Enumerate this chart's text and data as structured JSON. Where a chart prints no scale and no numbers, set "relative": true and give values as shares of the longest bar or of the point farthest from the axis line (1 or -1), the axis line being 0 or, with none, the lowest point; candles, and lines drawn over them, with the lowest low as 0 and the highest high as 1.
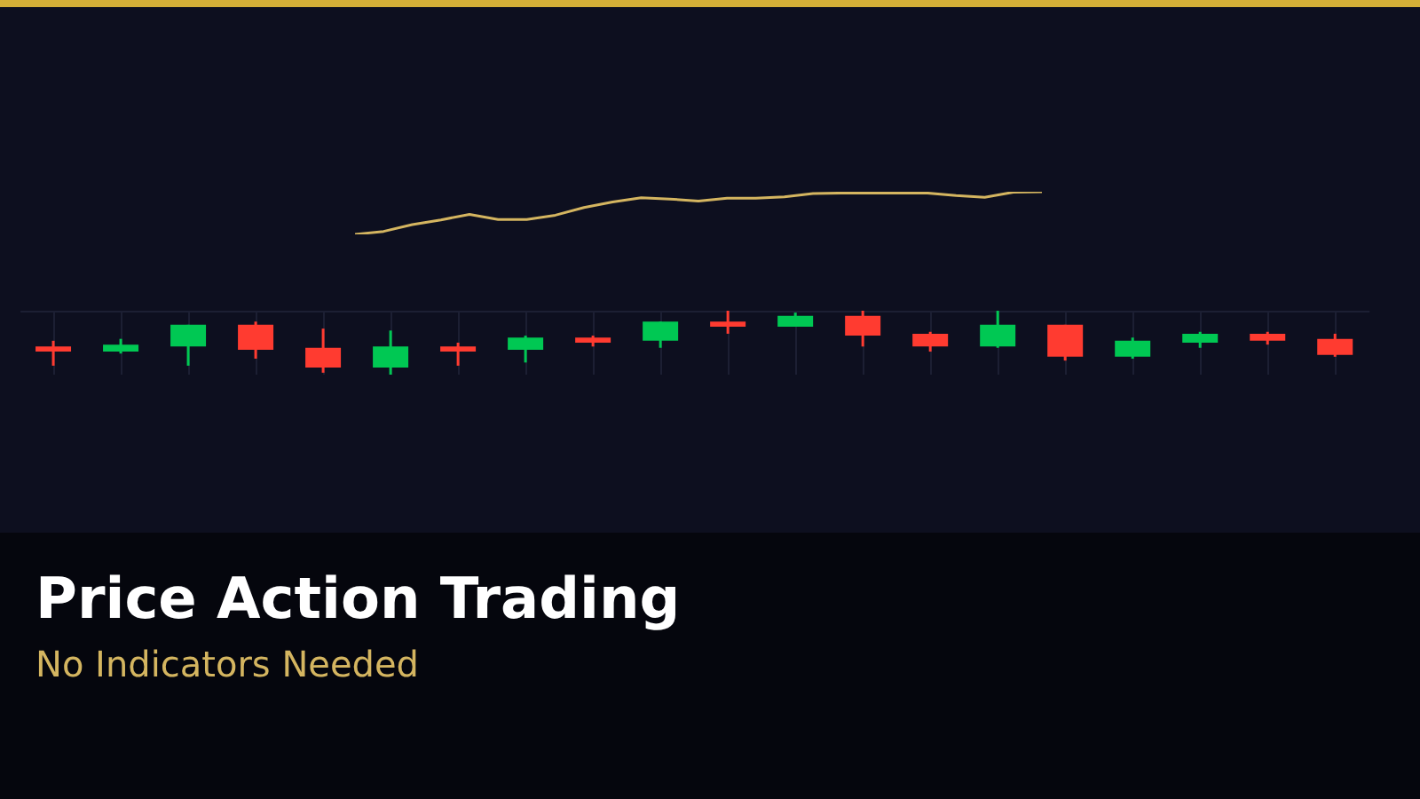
{
  "chart_data": [
    {
      "type": "line",
      "title": "Price Action Trading",
      "subtitle": "No Indicators Needed",
      "relative": true,
      "categories": [
        null,
        null,
        null,
        null,
        null,
        null,
        null,
        null,
        null,
        null,
        null,
        null,
        null,
        null,
        null,
        null,
        null,
        null,
        null,
        null,
        null,
        null,
        null,
        null,
        null
      ],
      "series": [
        {
          "color": "#d4b560",
          "values": [
            0,
            0.07,
            0.23,
            0.34,
            0.47,
            0.35,
            0.35,
            0.45,
            0.63,
            0.76,
            0.86,
            0.83,
            0.78,
            0.85,
            0.85,
            0.88,
            0.96,
            0.97,
            0.97,
            0.97,
            0.97,
            0.91,
            0.87,
            0.99,
            1
          ]
        }
      ]
    },
    {
      "type": "candlestick",
      "relative": true,
      "grid": true,
      "categories": [
        null,
        null,
        null,
        null,
        null,
        null,
        null,
        null,
        null,
        null,
        null,
        null,
        null,
        null,
        null,
        null,
        null,
        null,
        null,
        null
      ],
      "ohlc": [
        [
          0.44,
          0.53,
          0.14,
          0.36
        ],
        [
          0.36,
          0.56,
          0.33,
          0.47
        ],
        [
          0.44,
          0.78,
          0.14,
          0.78
        ],
        [
          0.78,
          0.83,
          0.25,
          0.39
        ],
        [
          0.42,
          0.72,
          0.03,
          0.11
        ],
        [
          0.11,
          0.69,
          0,
          0.44
        ],
        [
          0.44,
          0.5,
          0.14,
          0.36
        ],
        [
          0.39,
          0.61,
          0.19,
          0.58
        ],
        [
          0.58,
          0.61,
          0.44,
          0.5
        ],
        [
          0.53,
          0.83,
          0.42,
          0.83
        ],
        [
          0.83,
          1,
          0.64,
          0.75
        ],
        [
          0.75,
          0.97,
          0.75,
          0.92
        ],
        [
          0.92,
          1,
          0.44,
          0.61
        ],
        [
          0.64,
          0.67,
          0.36,
          0.44
        ],
        [
          0.44,
          1,
          0.42,
          0.78
        ],
        [
          0.78,
          0.78,
          0.22,
          0.28
        ],
        [
          0.28,
          0.58,
          0.25,
          0.53
        ],
        [
          0.5,
          0.67,
          0.42,
          0.64
        ],
        [
          0.64,
          0.67,
          0.47,
          0.53
        ],
        [
          0.56,
          0.64,
          0.28,
          0.31
        ]
      ],
      "colors": [
        "#ff3b30",
        "#00c853",
        "#00c853",
        "#ff3b30",
        "#ff3b30",
        "#00c853",
        "#ff3b30",
        "#00c853",
        "#ff3b30",
        "#00c853",
        "#ff3b30",
        "#00c853",
        "#ff3b30",
        "#ff3b30",
        "#00c853",
        "#ff3b30",
        "#00c853",
        "#00c853",
        "#ff3b30",
        "#ff3b30"
      ]
    }
  ]
}
